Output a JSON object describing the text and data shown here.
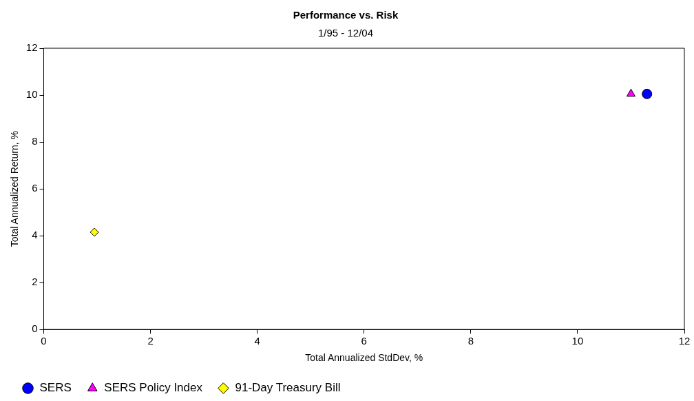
{
  "chart_data": {
    "type": "scatter",
    "title": "Performance vs. Risk",
    "subtitle": "1/95 - 12/04",
    "xlabel": "Total Annualized StdDev, %",
    "ylabel": "Total Annualized Return, %",
    "xlim": [
      0,
      12
    ],
    "xticks": [
      0,
      2,
      4,
      6,
      8,
      10,
      12
    ],
    "ylim": [
      0,
      12
    ],
    "yticks": [
      0,
      2,
      4,
      6,
      8,
      10,
      12
    ],
    "grid": false,
    "legend": "bottom left",
    "series": [
      {
        "name": "SERS",
        "color": "#0000ff",
        "marker": "circle",
        "x": [
          11.3
        ],
        "values": [
          10.05
        ]
      },
      {
        "name": "SERS Policy Index",
        "color": "#ff00ff",
        "marker": "triangle",
        "x": [
          11.0
        ],
        "values": [
          10.05
        ]
      },
      {
        "name": "91-Day Treasury Bill",
        "color": "#ffff00",
        "marker": "diamond",
        "x": [
          0.95
        ],
        "values": [
          4.15
        ]
      }
    ]
  }
}
